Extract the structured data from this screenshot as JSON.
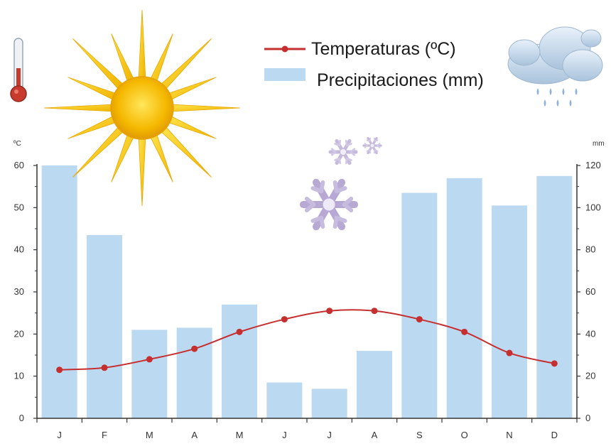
{
  "chart_data": {
    "type": "bar",
    "categories": [
      "J",
      "F",
      "M",
      "A",
      "M",
      "J",
      "J",
      "A",
      "S",
      "O",
      "N",
      "D"
    ],
    "series": [
      {
        "name": "Precipitaciones (mm)",
        "type": "bar",
        "axis": "right",
        "values": [
          120,
          87,
          42,
          43,
          54,
          17,
          14,
          32,
          107,
          114,
          101,
          115
        ]
      },
      {
        "name": "Temperaturas (ºC)",
        "type": "line",
        "axis": "left",
        "values": [
          11.5,
          12,
          14,
          16.5,
          20.5,
          23.5,
          25.5,
          25.5,
          23.5,
          20.5,
          15.5,
          13
        ]
      }
    ],
    "y_left_unit": "ºC",
    "y_right_unit": "mm",
    "y_left_range": [
      0,
      60
    ],
    "y_right_range": [
      0,
      120
    ],
    "y_left_ticks": [
      "0",
      "10",
      "20",
      "30",
      "40",
      "50",
      "60"
    ],
    "y_right_ticks": [
      "0",
      "20",
      "40",
      "60",
      "80",
      "100",
      "120"
    ],
    "legend_position": "top-center",
    "grid": false
  },
  "colors": {
    "bars": "#bcd9f2",
    "line": "#c62f2f",
    "axis": "#333333"
  },
  "icons": [
    "thermometer-icon",
    "sun-icon",
    "snowflake-icon",
    "rain-cloud-icon"
  ]
}
